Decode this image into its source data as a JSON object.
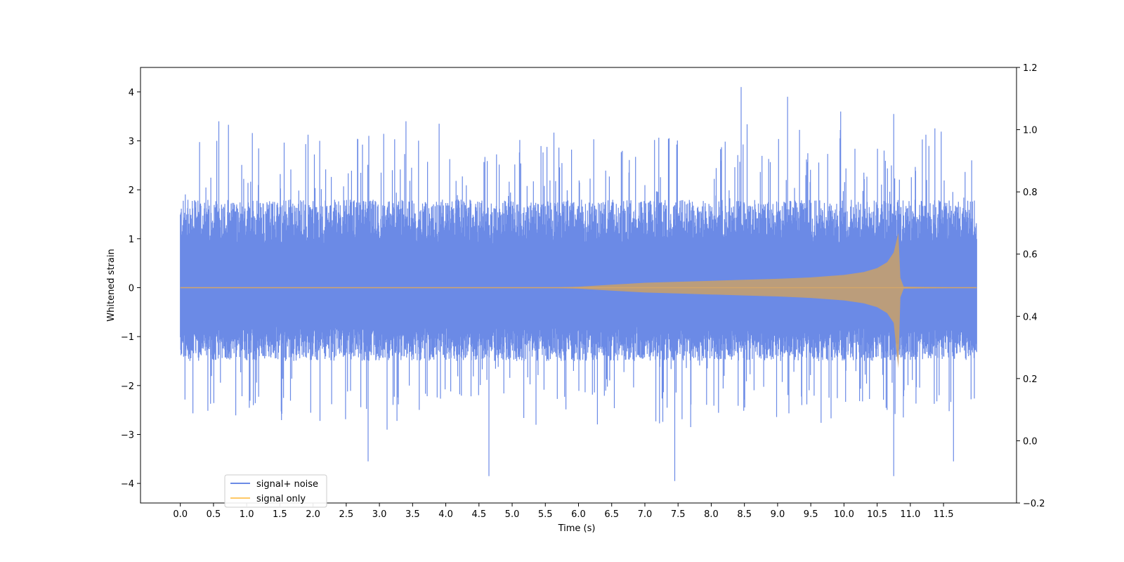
{
  "chart_data": {
    "type": "line",
    "title": "",
    "xlabel": "Time (s)",
    "ylabel": "Whitened strain",
    "xlim": [
      -0.6,
      12.6
    ],
    "ylim": [
      -4.4,
      4.5
    ],
    "y2lim": [
      -0.2,
      1.2
    ],
    "grid": false,
    "legend_position": "lower-left",
    "x_ticks": [
      "0.0",
      "0.5",
      "1.0",
      "1.5",
      "2.0",
      "2.5",
      "3.0",
      "3.5",
      "4.0",
      "4.5",
      "5.0",
      "5.5",
      "6.0",
      "6.5",
      "7.0",
      "7.5",
      "8.0",
      "8.5",
      "9.0",
      "9.5",
      "10.0",
      "10.5",
      "11.0",
      "11.5"
    ],
    "y_ticks": [
      "−4",
      "−3",
      "−2",
      "−1",
      "0",
      "1",
      "2",
      "3",
      "4"
    ],
    "y2_ticks": [
      "−0.2",
      "0.0",
      "0.2",
      "0.4",
      "0.6",
      "0.8",
      "1.0",
      "1.2"
    ],
    "series": [
      {
        "name": "signal+ noise",
        "color": "#6b8ae6",
        "note": "dense random noise band spanning roughly -2 to 2 with peaks near ±3.5 to ±4, t = 0.0 to 12.0 s",
        "x_range": [
          0.0,
          12.0
        ],
        "typical_range": [
          -1.7,
          2.0
        ],
        "peaks": [
          {
            "x": 0.58,
            "y": 3.4
          },
          {
            "x": 3.4,
            "y": 3.4
          },
          {
            "x": 3.9,
            "y": 3.35
          },
          {
            "x": 8.45,
            "y": 4.1
          },
          {
            "x": 9.15,
            "y": 3.9
          },
          {
            "x": 9.95,
            "y": 3.6
          },
          {
            "x": 10.75,
            "y": 3.55
          },
          {
            "x": 2.83,
            "y": -3.55
          },
          {
            "x": 4.65,
            "y": -3.85
          },
          {
            "x": 7.45,
            "y": -3.95
          },
          {
            "x": 10.75,
            "y": -3.85
          },
          {
            "x": 11.65,
            "y": -3.55
          }
        ]
      },
      {
        "name": "signal only",
        "color": "#ffc966",
        "note": "chirp: amplitude near 0 until ~6 s, growing to ~1.1 at merger t≈10.82 s, then ringdown to 0",
        "envelope": {
          "x": [
            0.0,
            5.5,
            6.0,
            6.5,
            7.0,
            7.5,
            8.0,
            8.5,
            9.0,
            9.5,
            10.0,
            10.3,
            10.5,
            10.65,
            10.75,
            10.82,
            10.85,
            10.9,
            12.0
          ],
          "upper": [
            0.0,
            0.0,
            0.02,
            0.06,
            0.1,
            0.12,
            0.14,
            0.16,
            0.18,
            0.21,
            0.26,
            0.32,
            0.4,
            0.52,
            0.72,
            1.12,
            0.2,
            0.02,
            0.0
          ],
          "lower": [
            0.0,
            0.0,
            -0.02,
            -0.06,
            -0.1,
            -0.12,
            -0.14,
            -0.16,
            -0.18,
            -0.21,
            -0.26,
            -0.32,
            -0.4,
            -0.52,
            -0.72,
            -1.65,
            -0.2,
            -0.02,
            0.0
          ]
        }
      }
    ]
  }
}
